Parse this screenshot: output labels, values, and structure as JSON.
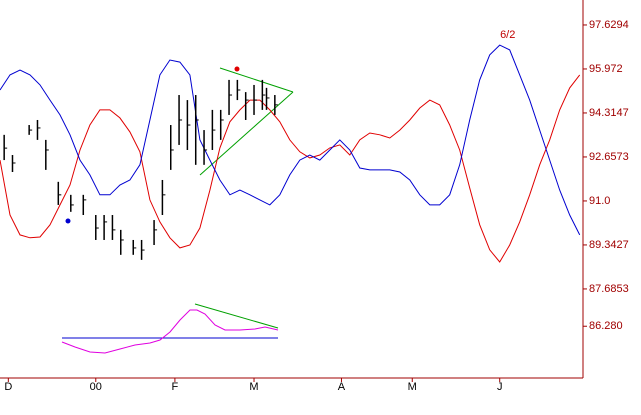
{
  "chart_data": {
    "type": "ohlc",
    "xlim": [
      0,
      140
    ],
    "xticks": [
      {
        "value": 2,
        "label": "D"
      },
      {
        "value": 23,
        "label": "00"
      },
      {
        "value": 42,
        "label": "F"
      },
      {
        "value": 61,
        "label": "M"
      },
      {
        "value": 82,
        "label": "A"
      },
      {
        "value": 99,
        "label": "M"
      },
      {
        "value": 120,
        "label": "J"
      }
    ],
    "ylim": [
      84.33,
      98.57
    ],
    "yticks": [
      97.6294,
      95.972,
      94.3147,
      92.6573,
      {
        "value": 91,
        "label": "91.0"
      },
      89.3427,
      87.6853,
      {
        "value": 86.28,
        "label": "86.280"
      }
    ],
    "bars": {
      "color": "#000000",
      "x": [
        1,
        3,
        7,
        9,
        11,
        14,
        17,
        20,
        23,
        25,
        27,
        29,
        32,
        34,
        37,
        39,
        41,
        43,
        45,
        47,
        49,
        51,
        53,
        55,
        57,
        59,
        61,
        63,
        64,
        66
      ],
      "high": [
        93.49,
        92.73,
        93.86,
        94.05,
        93.3,
        91.72,
        91.23,
        91.23,
        90.47,
        90.47,
        90.47,
        89.91,
        89.53,
        89.53,
        90.28,
        91.79,
        93.86,
        94.99,
        94.8,
        94.99,
        93.67,
        94.43,
        94.43,
        95.56,
        95.56,
        95.1,
        95.37,
        95.56,
        95.26,
        94.99
      ],
      "low": [
        92.54,
        92.09,
        93.49,
        93.3,
        92.17,
        90.85,
        90.59,
        90.47,
        89.53,
        89.53,
        89.53,
        88.97,
        88.97,
        88.78,
        89.34,
        90.47,
        92.17,
        93.11,
        92.92,
        92.36,
        92.36,
        92.92,
        93.3,
        94.24,
        94.8,
        94.05,
        94.24,
        94.43,
        94.43,
        94.24
      ],
      "close": [
        92.99,
        92.43,
        93.67,
        93.75,
        92.92,
        91.23,
        90.85,
        91.04,
        89.98,
        90.21,
        89.91,
        89.53,
        89.23,
        89.15,
        89.91,
        91.23,
        92.92,
        94.05,
        93.86,
        94.05,
        92.92,
        93.67,
        94.05,
        94.99,
        95.18,
        94.8,
        94.8,
        94.99,
        94.88,
        94.62
      ]
    },
    "lines": {
      "x": [
        0,
        2.4,
        4.8,
        7.2,
        9.6,
        12,
        14.4,
        16.8,
        19.2,
        21.6,
        24,
        26.4,
        28.8,
        31.2,
        33.6,
        36,
        38.4,
        40.8,
        43.2,
        45.6,
        48,
        50.4,
        52.8,
        55.2,
        57.6,
        60,
        62.4,
        64.8,
        67.2,
        69.6,
        72,
        74.4,
        76.8,
        79.2,
        81.6,
        84,
        86.4,
        88.8,
        91.2,
        93.6,
        96,
        98.4,
        100.8,
        103.2,
        105.6,
        108,
        110.4,
        112.8,
        115.2,
        117.6,
        120,
        122.4,
        124.8,
        127.2,
        129.6,
        132,
        134.4,
        136.8,
        139.2
      ],
      "series": [
        {
          "color": "#e00000",
          "values": [
            92.54,
            90.47,
            89.72,
            89.61,
            89.64,
            90.1,
            90.85,
            91.6,
            92.92,
            93.86,
            94.43,
            94.43,
            94.13,
            93.6,
            92.85,
            91.04,
            90.21,
            89.61,
            89.23,
            89.34,
            89.98,
            91.41,
            93.0,
            93.98,
            94.43,
            94.8,
            94.8,
            94.43,
            93.98,
            93.3,
            92.85,
            92.62,
            92.73,
            93.0,
            93.11,
            92.73,
            93.3,
            93.56,
            93.49,
            93.37,
            93.67,
            94.05,
            94.5,
            94.8,
            94.62,
            93.86,
            92.92,
            91.49,
            90.1,
            89.16,
            88.7,
            89.34,
            90.21,
            91.23,
            92.36,
            93.3,
            94.43,
            95.26,
            95.75
          ]
        },
        {
          "color": "#0000d0",
          "values": [
            95.18,
            95.75,
            95.93,
            95.75,
            95.37,
            94.8,
            94.24,
            93.49,
            92.54,
            91.98,
            91.23,
            91.23,
            91.6,
            91.79,
            92.36,
            94.05,
            95.75,
            96.31,
            96.23,
            95.75,
            93.3,
            92.54,
            91.79,
            91.23,
            91.41,
            91.23,
            91.04,
            90.85,
            91.23,
            91.98,
            92.54,
            92.73,
            92.54,
            92.92,
            93.3,
            92.92,
            92.24,
            92.17,
            92.17,
            92.17,
            92.09,
            91.79,
            91.23,
            90.85,
            90.85,
            91.23,
            92.36,
            94.05,
            95.56,
            96.5,
            96.87,
            96.69,
            95.75,
            94.8,
            93.67,
            92.54,
            91.41,
            90.47,
            89.72
          ]
        }
      ]
    },
    "annotation": "6/2"
  }
}
